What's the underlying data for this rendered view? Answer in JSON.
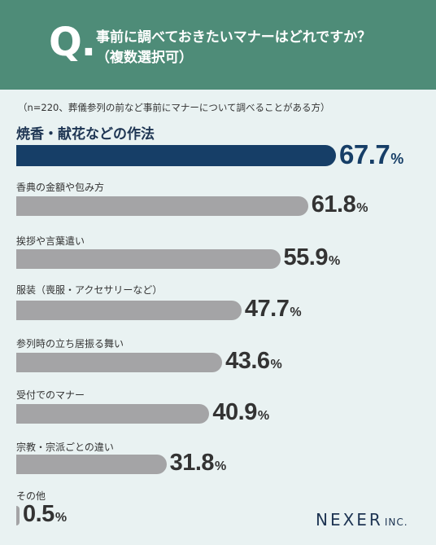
{
  "header": {
    "q_mark": "Q.",
    "question_line1": "事前に調べておきたいマナーはどれですか？",
    "question_line2": "（複数選択可）"
  },
  "condition": "（n=220、葬儀参列の前など事前にマナーについて調べることがある方）",
  "colors": {
    "header_bg": "#4e8c78",
    "highlight_bar": "#163e67",
    "normal_bar": "#a4a4a6",
    "background": "#e9f2f2"
  },
  "chart_data": {
    "type": "bar",
    "orientation": "horizontal",
    "categories": [
      "焼香・献花などの作法",
      "香典の金額や包み方",
      "挨拶や言葉遣い",
      "服装（喪服・アクセサリーなど）",
      "参列時の立ち居振る舞い",
      "受付でのマナー",
      "宗教・宗派ごとの違い",
      "その他"
    ],
    "values": [
      67.7,
      61.8,
      55.9,
      47.7,
      43.6,
      40.9,
      31.8,
      0.5
    ],
    "value_labels": [
      "67.7",
      "61.8",
      "55.9",
      "47.7",
      "43.6",
      "40.9",
      "31.8",
      "0.5"
    ],
    "unit": "%",
    "highlight_index": 0,
    "xlim": [
      0,
      100
    ],
    "grid": false,
    "legend": false
  },
  "brand": {
    "main": "NEXER",
    "sub": "INC."
  }
}
